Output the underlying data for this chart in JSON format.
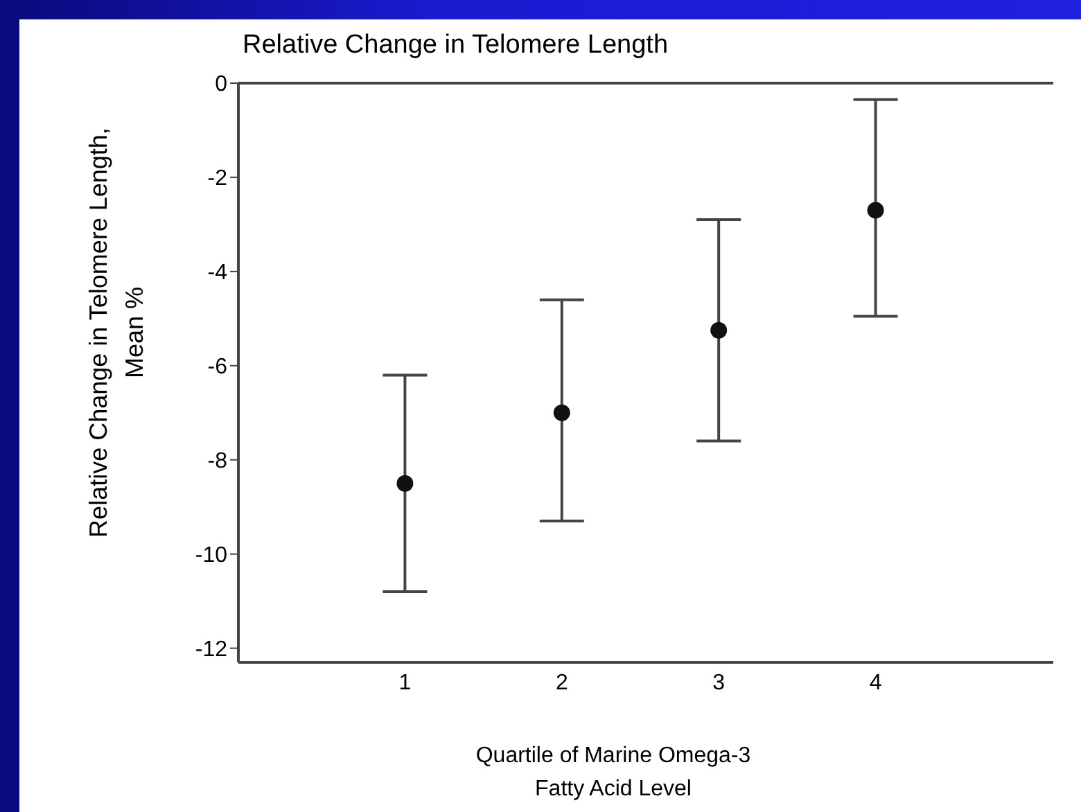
{
  "chart_data": {
    "type": "scatter",
    "title": "Relative Change in Telomere Length",
    "xlabel": "Quartile of Marine Omega-3 Fatty Acid Level",
    "ylabel": "Relative Change in Telomere Length, Mean %",
    "categories": [
      "1",
      "2",
      "3",
      "4"
    ],
    "values": [
      -8.5,
      -7.0,
      -5.25,
      -2.7
    ],
    "errors": [
      [
        -10.8,
        -6.2
      ],
      [
        -9.3,
        -4.6
      ],
      [
        -7.6,
        -2.9
      ],
      [
        -4.95,
        -0.35
      ]
    ],
    "color": "#111111",
    "marker": "circle",
    "ylim": [
      -12.3,
      0
    ],
    "yticks": [
      0,
      -2,
      -4,
      -6,
      -8,
      -10,
      -12
    ],
    "grid": false
  }
}
